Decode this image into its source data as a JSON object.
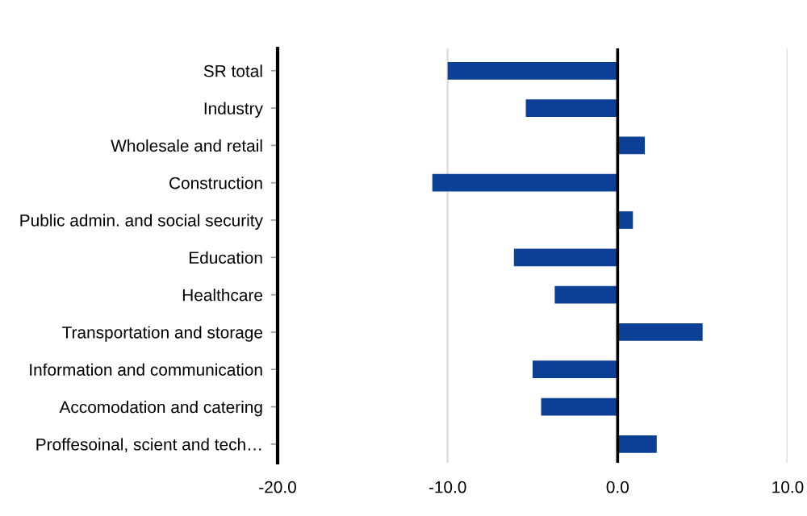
{
  "chart_data": {
    "type": "bar",
    "orientation": "horizontal",
    "categories": [
      "SR total",
      "Industry",
      "Wholesale and retail",
      "Construction",
      "Public admin. and social security",
      "Education",
      "Healthcare",
      "Transportation and storage",
      "Information and communication",
      "Accomodation and catering",
      "Proffesoinal, scient and tech…"
    ],
    "values": [
      -10.0,
      -5.4,
      1.6,
      -10.9,
      0.9,
      -6.1,
      -3.7,
      5.0,
      -5.0,
      -4.5,
      2.3
    ],
    "color": "#0c3f96",
    "xlim": [
      -20,
      10
    ],
    "xticks": [
      {
        "value": -20,
        "label": "-20.0"
      },
      {
        "value": -10,
        "label": "-10.0"
      },
      {
        "value": 0,
        "label": "0.0"
      },
      {
        "value": 10,
        "label": "10.0"
      }
    ],
    "ref_lines": [
      {
        "axis": "x",
        "value": 0,
        "color": "#000000"
      },
      {
        "axis": "x",
        "value": -10,
        "color": "#e0e0e0"
      },
      {
        "axis": "x",
        "value": 10,
        "color": "#e0e0e0"
      }
    ]
  }
}
